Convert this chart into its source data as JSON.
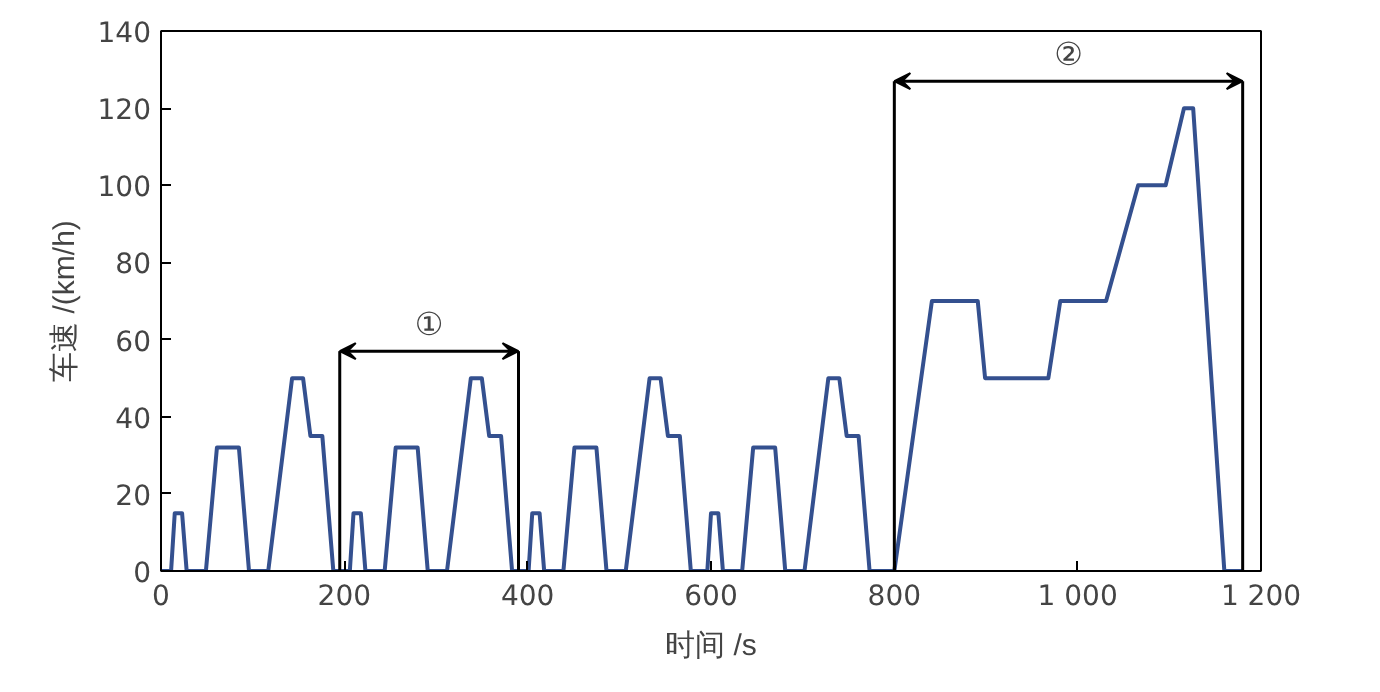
{
  "chart_data": {
    "type": "line",
    "xlabel": "时间 /s",
    "ylabel": "车速 /(km/h)",
    "x": [
      0,
      11,
      15,
      23,
      28,
      49,
      61,
      85,
      96,
      117,
      143,
      155,
      163,
      176,
      188,
      195,
      206,
      210,
      218,
      223,
      244,
      256,
      280,
      291,
      312,
      338,
      350,
      358,
      371,
      383,
      390,
      401,
      405,
      413,
      418,
      439,
      451,
      475,
      486,
      507,
      533,
      545,
      553,
      566,
      578,
      585,
      596,
      600,
      608,
      613,
      634,
      646,
      670,
      681,
      702,
      728,
      740,
      748,
      761,
      773,
      780,
      800,
      841,
      891,
      899,
      968,
      981,
      1031,
      1066,
      1096,
      1116,
      1126,
      1160,
      1180
    ],
    "series": [
      {
        "color": "#34508f",
        "values": [
          0,
          0,
          15,
          15,
          0,
          0,
          32,
          32,
          0,
          0,
          50,
          50,
          35,
          35,
          0,
          0,
          0,
          15,
          15,
          0,
          0,
          32,
          32,
          0,
          0,
          50,
          50,
          35,
          35,
          0,
          0,
          0,
          15,
          15,
          0,
          0,
          32,
          32,
          0,
          0,
          50,
          50,
          35,
          35,
          0,
          0,
          0,
          15,
          15,
          0,
          0,
          32,
          32,
          0,
          0,
          50,
          50,
          35,
          35,
          0,
          0,
          0,
          70,
          70,
          50,
          50,
          70,
          70,
          100,
          100,
          120,
          120,
          0,
          0
        ]
      }
    ],
    "ref_lines": [
      {
        "axis": "x",
        "value": 195
      },
      {
        "axis": "x",
        "value": 390
      },
      {
        "axis": "x",
        "value": 800
      },
      {
        "axis": "x",
        "value": 1180
      }
    ],
    "annotations": [
      "①",
      "②"
    ],
    "xlim": [
      0,
      1200
    ],
    "ylim": [
      0,
      140
    ],
    "xticks": [
      0,
      200,
      400,
      600,
      800,
      {
        "value": 1000,
        "label": "1 000"
      },
      {
        "value": 1200,
        "label": "1 200"
      }
    ],
    "yticks": [
      0,
      20,
      40,
      60,
      80,
      100,
      120,
      140
    ],
    "marker": "none",
    "line_style": "solid"
  }
}
